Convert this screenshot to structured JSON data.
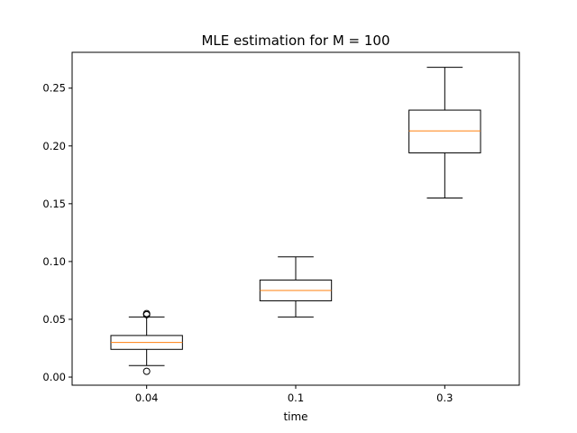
{
  "chart_data": {
    "type": "box",
    "title": "MLE estimation for M = 100",
    "xlabel": "time",
    "ylabel": "",
    "categories": [
      "0.04",
      "0.1",
      "0.3"
    ],
    "ylim": [
      -0.007,
      0.281
    ],
    "yticks": [
      0.0,
      0.05,
      0.1,
      0.15,
      0.2,
      0.25
    ],
    "ytick_labels": [
      "0.00",
      "0.05",
      "0.10",
      "0.15",
      "0.20",
      "0.25"
    ],
    "grid": false,
    "boxes": [
      {
        "category": "0.04",
        "whisker_low": 0.01,
        "q1": 0.024,
        "median": 0.03,
        "q3": 0.036,
        "whisker_high": 0.052,
        "outliers": [
          0.005,
          0.054,
          0.055
        ]
      },
      {
        "category": "0.1",
        "whisker_low": 0.052,
        "q1": 0.066,
        "median": 0.075,
        "q3": 0.084,
        "whisker_high": 0.104,
        "outliers": []
      },
      {
        "category": "0.3",
        "whisker_low": 0.155,
        "q1": 0.194,
        "median": 0.213,
        "q3": 0.231,
        "whisker_high": 0.268,
        "outliers": []
      }
    ],
    "colors": {
      "box": "#000000",
      "median": "#ff7f0e",
      "outlier": "#000000"
    }
  }
}
